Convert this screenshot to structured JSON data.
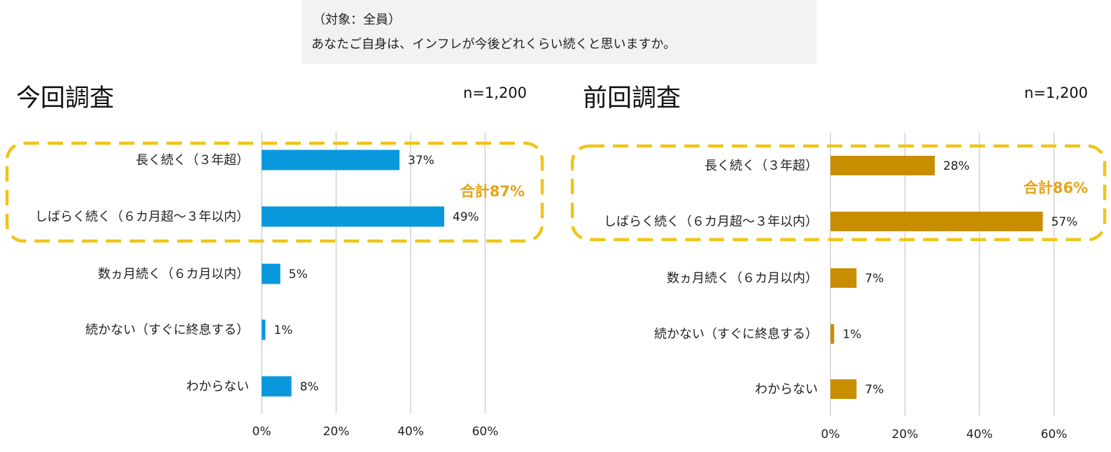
{
  "question": {
    "target": "（対象：全員）",
    "text": "あなたご自身は、インフレが今後どれくらい続くと思いますか。"
  },
  "colors": {
    "current": "#0a98dc",
    "previous": "#c88d00",
    "highlight": "#f0c419",
    "total_text": "#e8a21a"
  },
  "chart_data": [
    {
      "type": "bar",
      "orientation": "horizontal",
      "title": "今回調査",
      "n_label": "n=1,200",
      "categories": [
        "長く続く（３年超）",
        "しばらく続く（６カ月超～３年以内）",
        "数ヵ月続く（６カ月以内）",
        "続かない（すぐに終息する）",
        "わからない"
      ],
      "values": [
        37,
        49,
        5,
        1,
        8
      ],
      "value_labels": [
        "37%",
        "49%",
        "5%",
        "1%",
        "8%"
      ],
      "xlim": [
        0,
        60
      ],
      "ticks": [
        0,
        20,
        40,
        60
      ],
      "tick_labels": [
        "0%",
        "20%",
        "40%",
        "60%"
      ],
      "grid": true,
      "highlight_total": "合計87%"
    },
    {
      "type": "bar",
      "orientation": "horizontal",
      "title": "前回調査",
      "n_label": "n=1,200",
      "categories": [
        "長く続く（３年超）",
        "しばらく続く（６カ月超～３年以内）",
        "数ヵ月続く（６カ月以内）",
        "続かない（すぐに終息する）",
        "わからない"
      ],
      "values": [
        28,
        57,
        7,
        1,
        7
      ],
      "value_labels": [
        "28%",
        "57%",
        "7%",
        "1%",
        "7%"
      ],
      "xlim": [
        0,
        60
      ],
      "ticks": [
        0,
        20,
        40,
        60
      ],
      "tick_labels": [
        "0%",
        "20%",
        "40%",
        "60%"
      ],
      "grid": true,
      "highlight_total": "合計86%"
    }
  ]
}
